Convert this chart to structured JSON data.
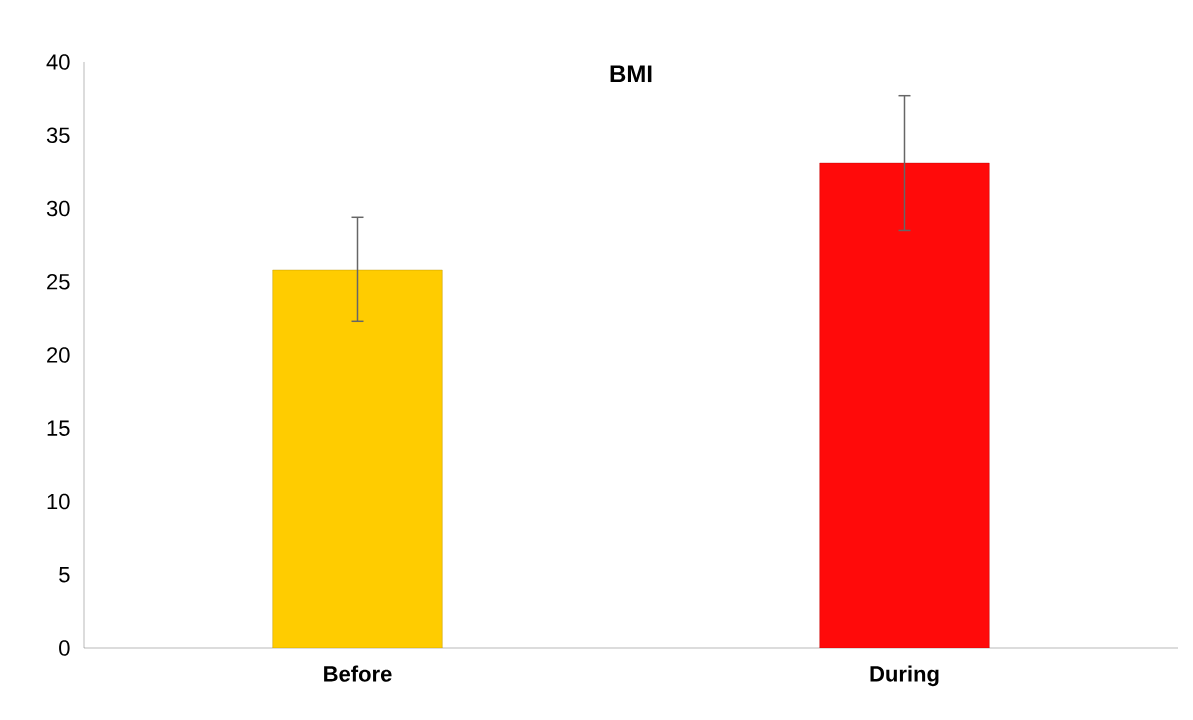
{
  "chart_data": {
    "type": "bar",
    "title": "BMI",
    "categories": [
      "Before",
      "During"
    ],
    "values": [
      25.8,
      33.1
    ],
    "colors": [
      "#ffcc00",
      "#ff0a0a"
    ],
    "errors": [
      [
        22.3,
        29.4
      ],
      [
        28.5,
        37.7
      ]
    ],
    "ylim": [
      0,
      40
    ],
    "yticks": [
      0,
      5,
      10,
      15,
      20,
      25,
      30,
      35,
      40
    ]
  }
}
